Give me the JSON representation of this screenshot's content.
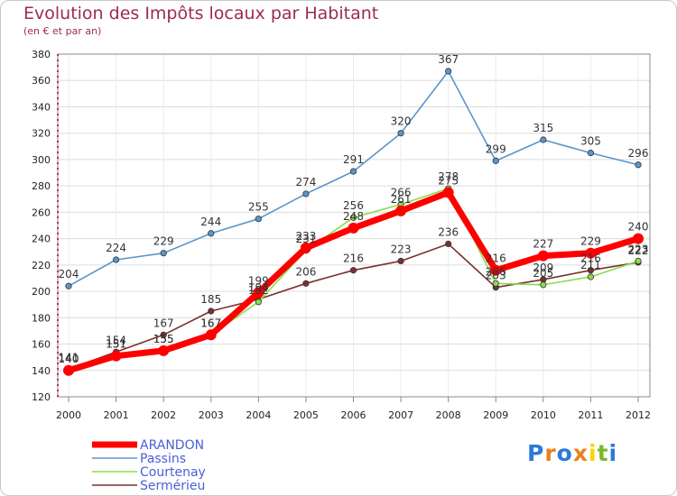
{
  "chart_data": {
    "type": "line",
    "title": "Evolution des Impôts locaux par Habitant",
    "subtitle": "(en € et par an)",
    "xlabel": "",
    "ylabel": "",
    "ylim": [
      120,
      380
    ],
    "yticks": [
      120,
      140,
      160,
      180,
      200,
      220,
      240,
      260,
      280,
      300,
      320,
      340,
      360,
      380
    ],
    "categories": [
      "2000",
      "2001",
      "2002",
      "2003",
      "2004",
      "2005",
      "2006",
      "2007",
      "2008",
      "2009",
      "2010",
      "2011",
      "2012"
    ],
    "grid": true,
    "legend_position": "bottom-left",
    "series": [
      {
        "name": "Sermérieu",
        "color": "#7a3030",
        "values": [
          141,
          154,
          167,
          185,
          194,
          206,
          216,
          223,
          236,
          203,
          209,
          216,
          222
        ]
      },
      {
        "name": "Courtenay",
        "color": "#88dd4a",
        "values": [
          140,
          151,
          155,
          167,
          192,
          231,
          256,
          266,
          278,
          206,
          205,
          211,
          223
        ]
      },
      {
        "name": "Passins",
        "color": "#5b95c9",
        "values": [
          204,
          224,
          229,
          244,
          255,
          274,
          291,
          320,
          367,
          299,
          315,
          305,
          296
        ]
      },
      {
        "name": "ARANDON",
        "color": "#ff0000",
        "values": [
          140,
          151,
          155,
          167,
          199,
          233,
          248,
          261,
          275,
          216,
          227,
          229,
          240
        ]
      }
    ],
    "legend": [
      "ARANDON",
      "Passins",
      "Courtenay",
      "Sermérieu"
    ]
  },
  "logo": {
    "text": "Proxiti",
    "letters": [
      "P",
      "r",
      "o",
      "x",
      "i",
      "t",
      "i"
    ],
    "colors": [
      "#2a7bd6",
      "#e8821e",
      "#2a7bd6",
      "#e8821e",
      "#ffd200",
      "#7ab82e",
      "#2a7bd6"
    ]
  }
}
